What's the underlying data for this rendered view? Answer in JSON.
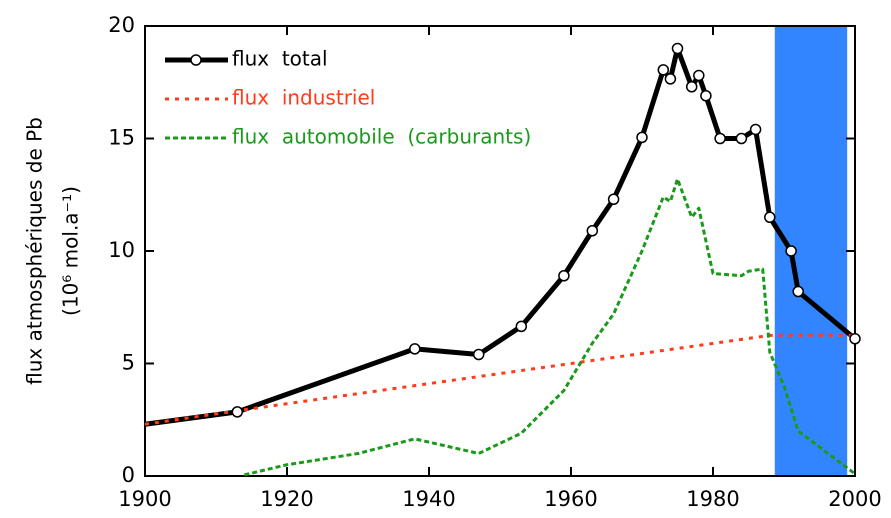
{
  "chart_data": {
    "type": "line",
    "ylabel": [
      "flux atmosphériques de Pb",
      "(10⁶ mol.a⁻¹)"
    ],
    "xlim": [
      1900,
      2000
    ],
    "xticks": [
      1900,
      1920,
      1940,
      1960,
      1980,
      2000
    ],
    "ylim": [
      0,
      20
    ],
    "yticks": [
      0,
      5,
      10,
      15,
      20
    ],
    "shaded_region": {
      "x": [
        1988.7,
        1998.9
      ],
      "color": "#3385ff"
    },
    "legend": "upper left",
    "series": [
      {
        "name": "flux  total",
        "color": "#000000",
        "style": "solid",
        "markers": true,
        "x": [
          1900,
          1913,
          1938,
          1947,
          1953,
          1959,
          1963,
          1966,
          1970,
          1973,
          1974,
          1975,
          1977,
          1978,
          1979,
          1981,
          1984,
          1986,
          1988,
          1991,
          1992,
          2000
        ],
        "values": [
          2.3,
          2.85,
          5.65,
          5.4,
          6.65,
          8.9,
          10.9,
          12.3,
          15.05,
          18.05,
          17.65,
          19.0,
          17.3,
          17.8,
          16.9,
          15.0,
          15.0,
          15.4,
          11.5,
          10.0,
          8.2,
          6.1
        ]
      },
      {
        "name": "flux  industriel",
        "color": "#ff3b1a",
        "style": "dotted",
        "markers": false,
        "x": [
          1900,
          1913,
          1988,
          2000
        ],
        "values": [
          2.3,
          2.9,
          6.25,
          6.25
        ]
      },
      {
        "name": "flux  automobile  (carburants)",
        "color": "#1a9a1a",
        "style": "dashed",
        "markers": false,
        "x": [
          1914,
          1920,
          1930,
          1938,
          1947,
          1953,
          1959,
          1963,
          1966,
          1970,
          1973,
          1974,
          1975,
          1977,
          1978,
          1980,
          1984,
          1985,
          1987,
          1988,
          1990,
          1992,
          2000
        ],
        "values": [
          0.05,
          0.5,
          1.0,
          1.65,
          1.0,
          1.9,
          3.8,
          5.9,
          7.2,
          10.0,
          12.4,
          12.2,
          13.2,
          11.5,
          11.9,
          9.0,
          8.9,
          9.1,
          9.2,
          5.5,
          4.0,
          2.0,
          0.1
        ]
      }
    ]
  }
}
